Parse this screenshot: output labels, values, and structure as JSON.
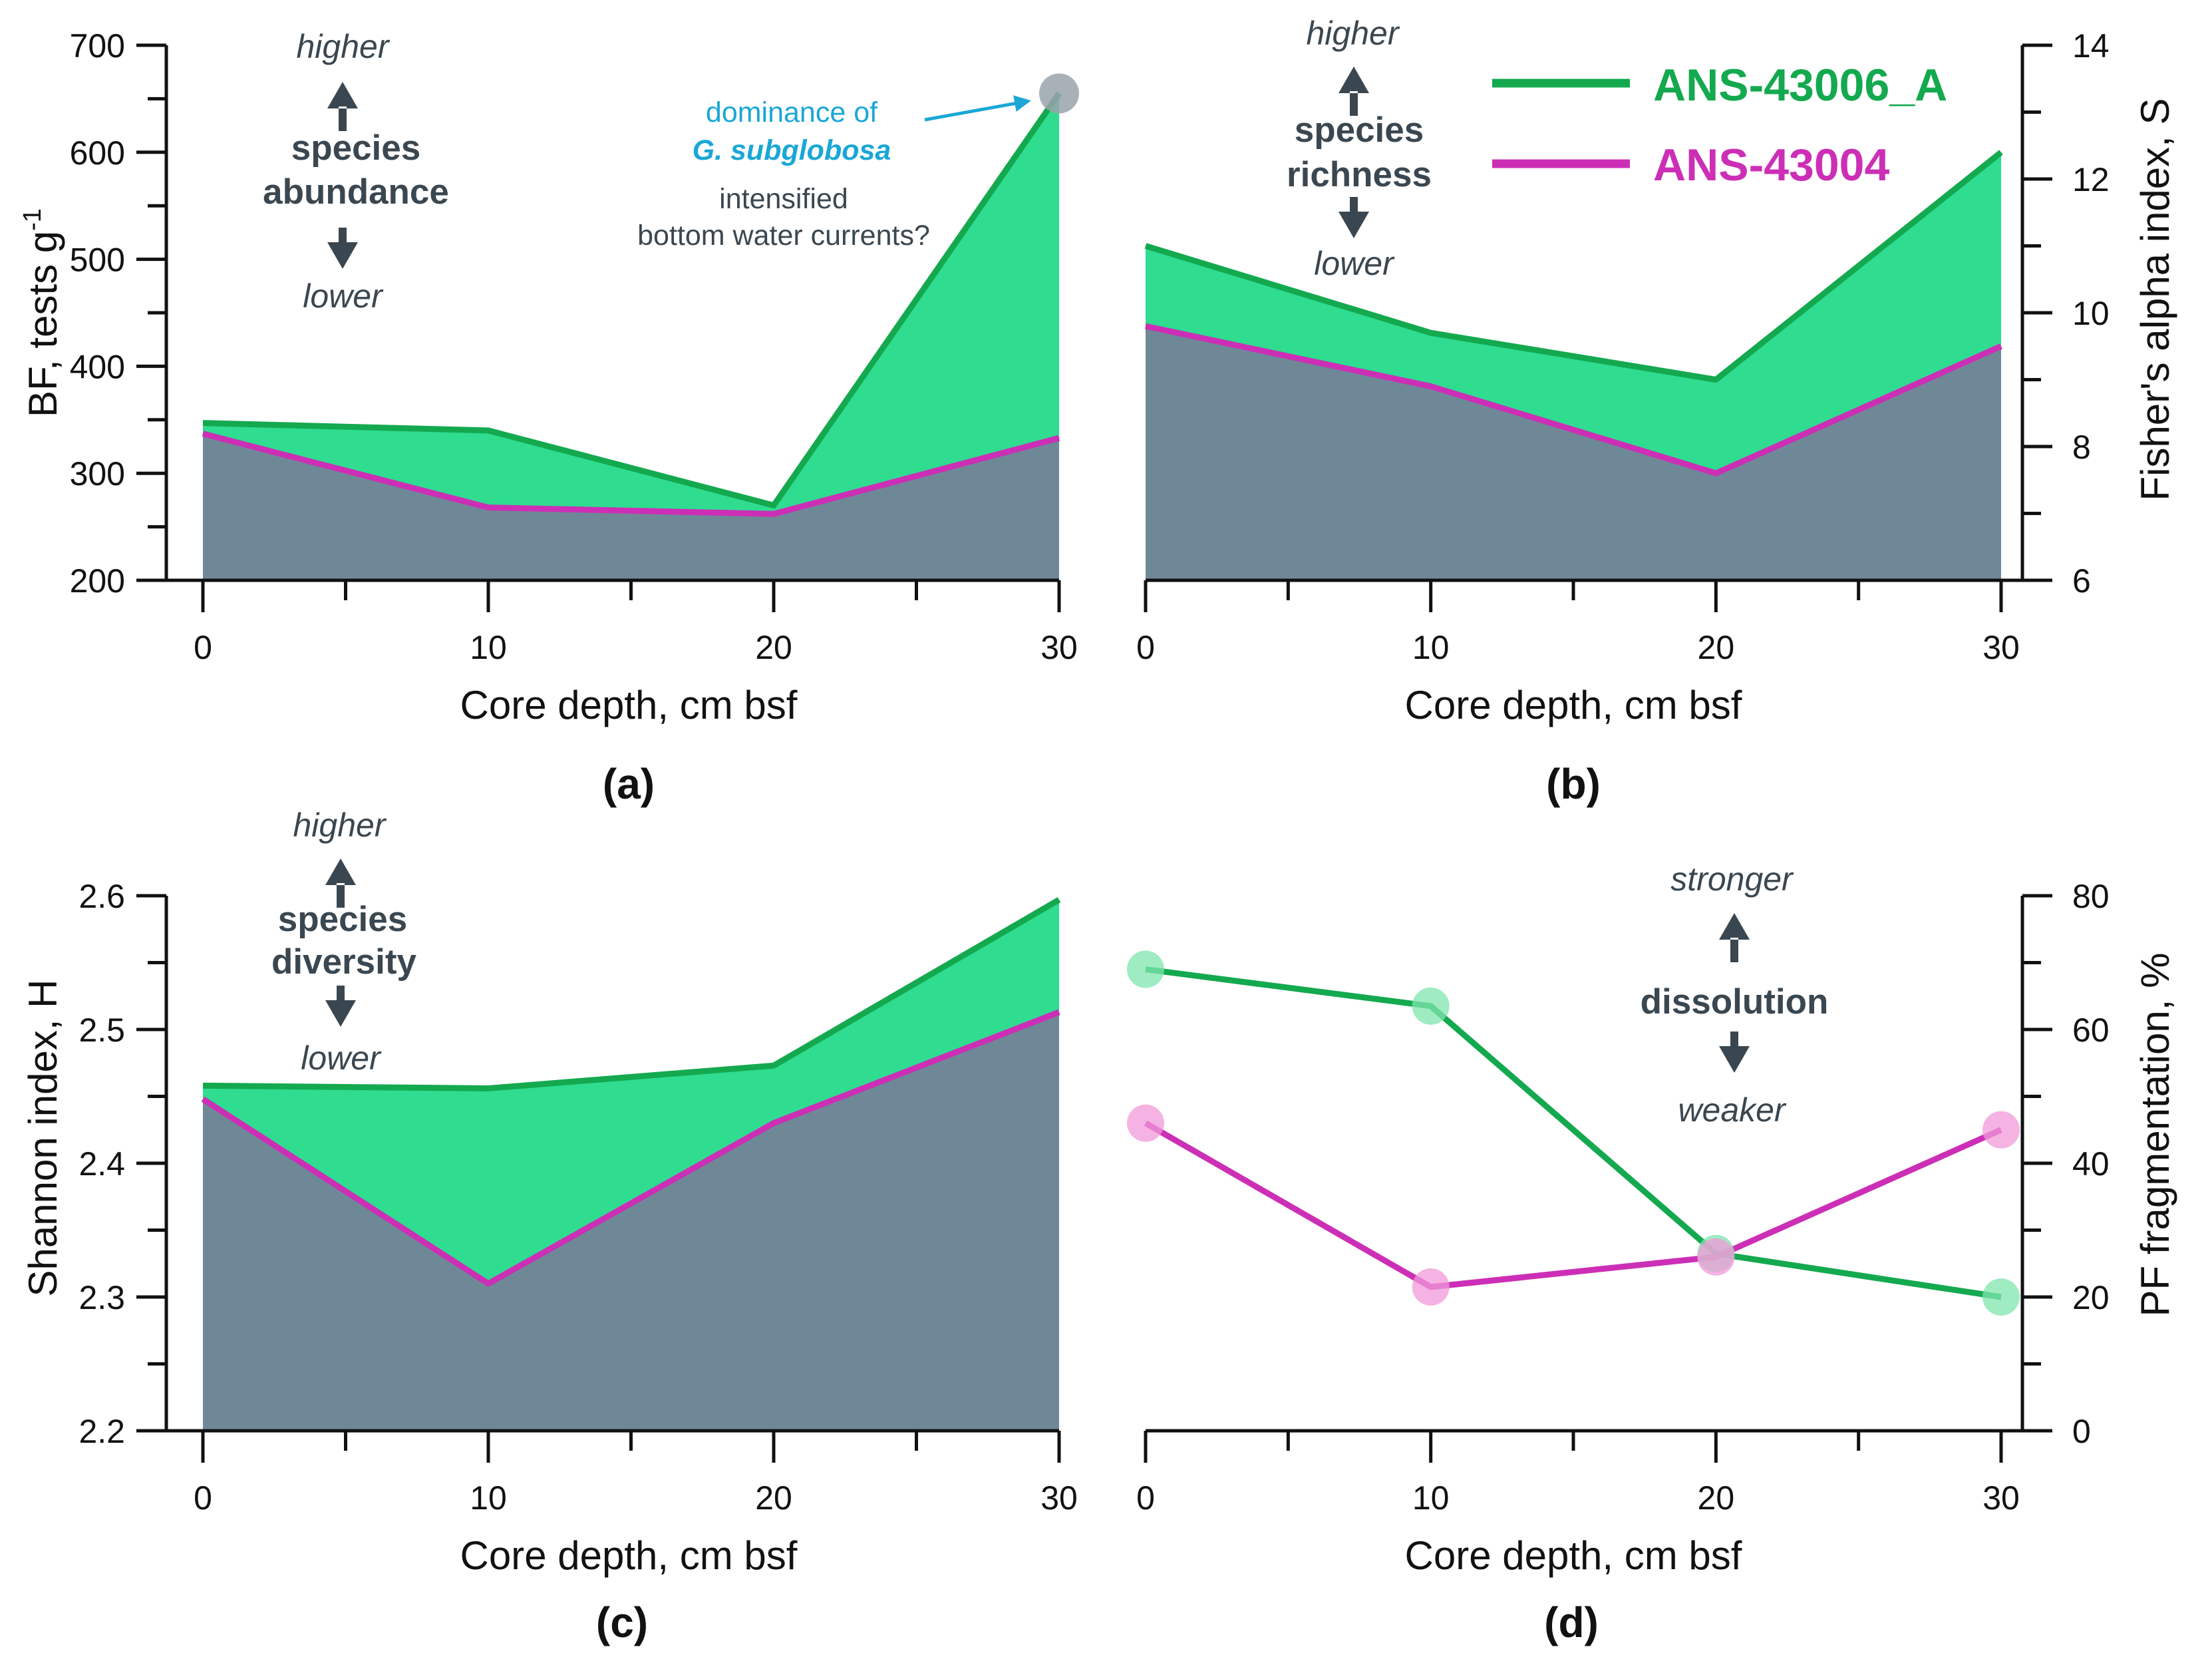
{
  "colors": {
    "green_line": "#14a94f",
    "green_fill": "#2fdc90",
    "magenta_line": "#cc2fb6",
    "slate_fill": "#6f8898",
    "marker_gray": "#9aa3ab",
    "annotation": "#3b4750",
    "arrow_dark": "#3b4750",
    "annotation_blue": "#1aa7d6",
    "marker_green": "#7fe6ad",
    "marker_pink": "#f29ad9"
  },
  "legend": {
    "items": [
      {
        "label": "ANS-43006_A",
        "color": "#14a94f"
      },
      {
        "label": "ANS-43004",
        "color": "#cc2fb6"
      }
    ]
  },
  "chart_data": [
    {
      "panel": "a",
      "panel_label": "(a)",
      "type": "area",
      "x": [
        0,
        10,
        20,
        30
      ],
      "xlabel": "Core depth, cm bsf",
      "ylabel": "BF, tests g",
      "ylabel_superscript": "-1",
      "ylim": [
        200,
        700
      ],
      "yticks": [
        200,
        300,
        400,
        500,
        600,
        700
      ],
      "xticks": [
        0,
        10,
        20,
        30
      ],
      "y_axis_side": "left",
      "series": [
        {
          "name": "ANS-43006_A",
          "values": [
            347,
            340,
            270,
            655
          ]
        },
        {
          "name": "ANS-43004",
          "values": [
            337,
            268,
            262,
            333
          ]
        }
      ],
      "annotations": {
        "higher": "higher",
        "metric_line1": "species",
        "metric_line2": "abundance",
        "lower": "lower",
        "callout_line1": "dominance of",
        "callout_line2": "G. subglobosa",
        "callout_line3": "intensified",
        "callout_line4": "bottom water currents?"
      }
    },
    {
      "panel": "b",
      "panel_label": "(b)",
      "type": "area",
      "x": [
        0,
        10,
        20,
        30
      ],
      "xlabel": "Core depth, cm bsf",
      "ylabel": "Fisher's alpha index, S",
      "ylim": [
        6,
        14
      ],
      "yticks": [
        6,
        8,
        10,
        12,
        14
      ],
      "xticks": [
        0,
        10,
        20,
        30
      ],
      "y_axis_side": "right",
      "series": [
        {
          "name": "ANS-43006_A",
          "values": [
            11.0,
            9.7,
            9.0,
            12.4
          ]
        },
        {
          "name": "ANS-43004",
          "values": [
            9.8,
            8.9,
            7.6,
            9.5
          ]
        }
      ],
      "annotations": {
        "higher": "higher",
        "metric_line1": "species",
        "metric_line2": "richness",
        "lower": "lower"
      }
    },
    {
      "panel": "c",
      "panel_label": "(c)",
      "type": "area",
      "x": [
        0,
        10,
        20,
        30
      ],
      "xlabel": "Core depth, cm bsf",
      "ylabel": "Shannon index, H",
      "ylim": [
        2.2,
        2.6
      ],
      "yticks": [
        2.2,
        2.3,
        2.4,
        2.5,
        2.6
      ],
      "ytick_labels": [
        "2.2",
        "2.3",
        "2.4",
        "2.5",
        "2.6"
      ],
      "xticks": [
        0,
        10,
        20,
        30
      ],
      "y_axis_side": "left",
      "series": [
        {
          "name": "ANS-43006_A",
          "values": [
            2.458,
            2.456,
            2.473,
            2.597
          ]
        },
        {
          "name": "ANS-43004",
          "values": [
            2.448,
            2.31,
            2.43,
            2.513
          ]
        }
      ],
      "annotations": {
        "higher": "higher",
        "metric_line1": "species",
        "metric_line2": "diversity",
        "lower": "lower"
      }
    },
    {
      "panel": "d",
      "panel_label": "(d)",
      "type": "line",
      "x": [
        0,
        10,
        20,
        30
      ],
      "xlabel": "Core depth, cm bsf",
      "ylabel": "PF fragmentation, %",
      "ylim": [
        0,
        80
      ],
      "yticks": [
        0,
        20,
        40,
        60,
        80
      ],
      "xticks": [
        0,
        10,
        20,
        30
      ],
      "y_axis_side": "right",
      "series": [
        {
          "name": "ANS-43006_A",
          "values": [
            69,
            63.5,
            26.5,
            20
          ]
        },
        {
          "name": "ANS-43004",
          "values": [
            46,
            21.5,
            26,
            45
          ]
        }
      ],
      "annotations": {
        "stronger": "stronger",
        "metric_line1": "dissolution",
        "weaker": "weaker"
      }
    }
  ]
}
